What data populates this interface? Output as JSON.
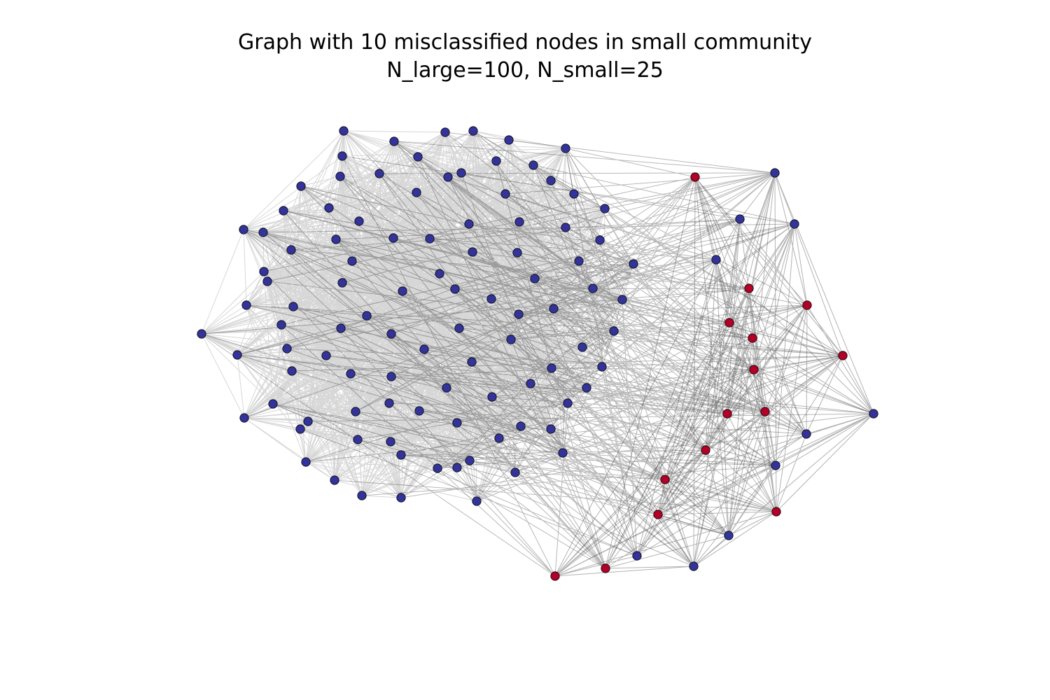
{
  "figure": {
    "title_line1": "Graph with 10 misclassified nodes in small community",
    "title_line2": "N_large=100, N_small=25"
  },
  "colors": {
    "large_community": "#333399",
    "small_community": "#b30026",
    "node_stroke": "#000000",
    "edge": "#000000",
    "background": "#ffffff"
  }
}
